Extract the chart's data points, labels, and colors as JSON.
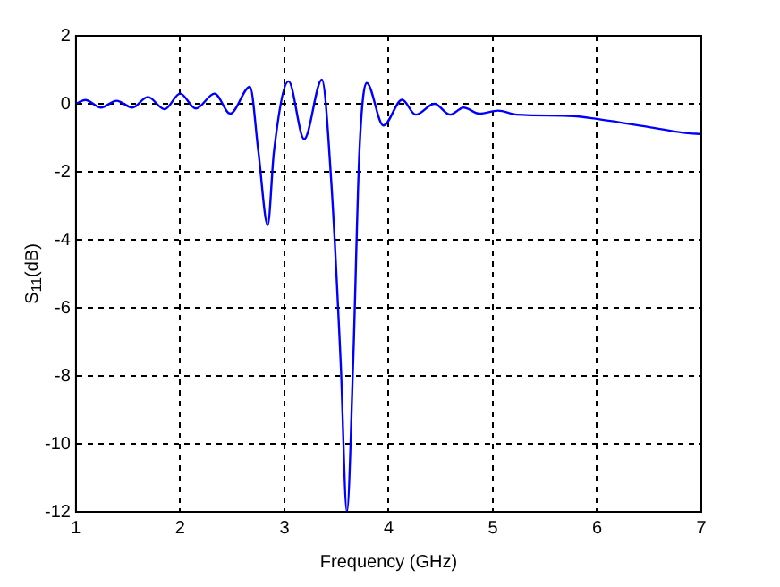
{
  "chart_data": {
    "type": "line",
    "xlabel": "Frequency (GHz)",
    "ylabel": "S$_{11}$(dB)",
    "series": [
      {
        "color": "#0000ff",
        "x": [
          1.0,
          1.09,
          1.24,
          1.39,
          1.54,
          1.69,
          1.85,
          2.0,
          2.15,
          2.33,
          2.48,
          2.67,
          2.75,
          2.84,
          2.9,
          3.04,
          3.19,
          3.36,
          3.45,
          3.54,
          3.6,
          3.66,
          3.72,
          3.79,
          3.95,
          4.13,
          4.26,
          4.44,
          4.59,
          4.72,
          4.87,
          5.05,
          5.23,
          5.77,
          6.01,
          6.49,
          6.85,
          7.0
        ],
        "values": [
          0.0,
          0.11,
          -0.11,
          0.09,
          -0.11,
          0.2,
          -0.16,
          0.3,
          -0.14,
          0.3,
          -0.29,
          0.5,
          -1.4,
          -3.57,
          -1.4,
          0.66,
          -1.04,
          0.71,
          -2.3,
          -7.6,
          -12.0,
          -7.6,
          -1.4,
          0.61,
          -0.64,
          0.12,
          -0.32,
          0.0,
          -0.32,
          -0.11,
          -0.29,
          -0.2,
          -0.32,
          -0.36,
          -0.45,
          -0.68,
          -0.86,
          -0.89
        ]
      }
    ],
    "xlim": [
      1,
      7
    ],
    "xticks": [
      1,
      2,
      3,
      4,
      5,
      6,
      7
    ],
    "ylim": [
      -12,
      2
    ],
    "yticks": [
      -12,
      -10,
      -8,
      -6,
      -4,
      -2,
      0,
      2
    ],
    "grid": true,
    "legend": false,
    "marker": "none",
    "line_style": "solid"
  }
}
